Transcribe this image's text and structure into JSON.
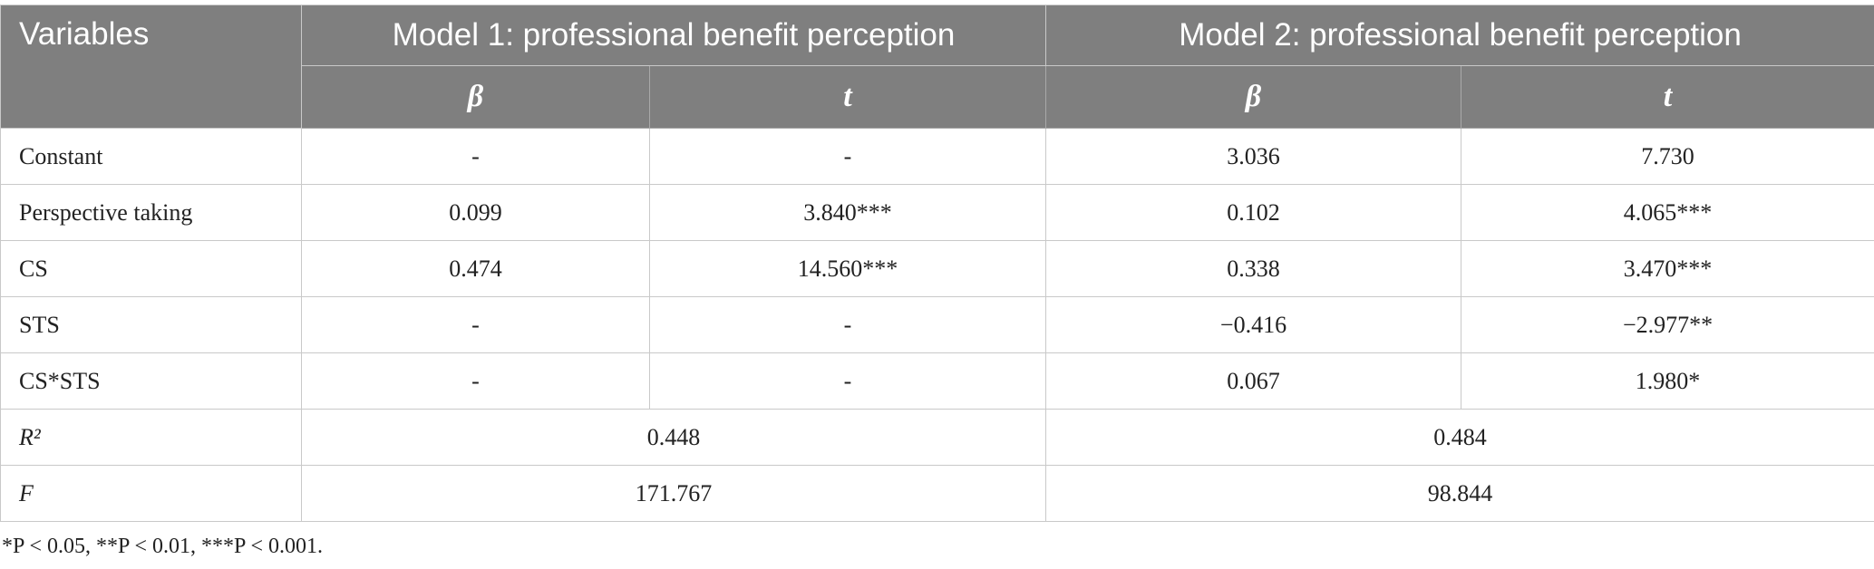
{
  "table": {
    "header": [
      "Variables",
      "Model 1: professional benefit perception",
      "Model 2: professional benefit perception"
    ],
    "subheader": [
      "β",
      "t",
      "β",
      "t"
    ],
    "rows": [
      [
        "Constant",
        "-",
        "-",
        "3.036",
        "7.730"
      ],
      [
        "Perspective taking",
        "0.099",
        "3.840***",
        "0.102",
        "4.065***"
      ],
      [
        "CS",
        "0.474",
        "14.560***",
        "0.338",
        "3.470***"
      ],
      [
        "STS",
        "-",
        "-",
        "−0.416",
        "−2.977**"
      ],
      [
        "CS*STS",
        "-",
        "-",
        "0.067",
        "1.980*"
      ],
      [
        "R²",
        "0.448",
        "0.484"
      ],
      [
        "F",
        "171.767",
        "98.844"
      ]
    ],
    "footnote": "*P < 0.05, **P < 0.01, ***P < 0.001."
  }
}
